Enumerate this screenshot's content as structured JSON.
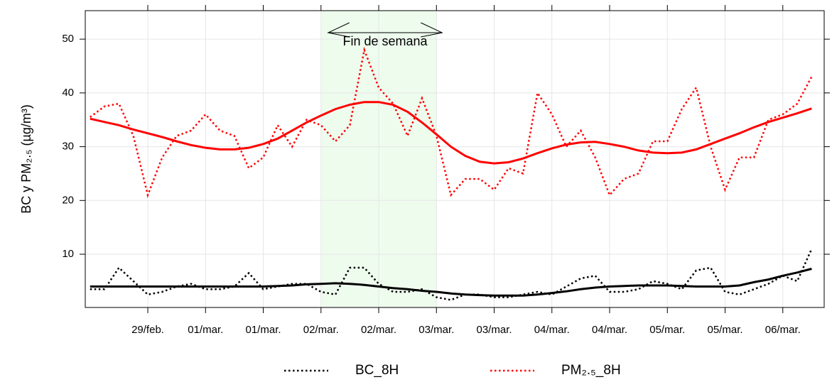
{
  "chart_data": {
    "type": "line",
    "y_label": "BC y PM₂.₅ (µg/m³)",
    "annotation": {
      "text": "Fin de semana",
      "range": [
        48,
        72
      ],
      "color": "#eefcee"
    },
    "xlim": [
      -1,
      152.6
    ],
    "ylim": [
      0.1,
      55.3
    ],
    "yticks": [
      10,
      20,
      30,
      40,
      50
    ],
    "xticks": [
      {
        "value": 12,
        "label": "29/feb."
      },
      {
        "value": 24,
        "label": "01/mar."
      },
      {
        "value": 36,
        "label": "01/mar."
      },
      {
        "value": 48,
        "label": "02/mar."
      },
      {
        "value": 60,
        "label": "02/mar."
      },
      {
        "value": 72,
        "label": "03/mar."
      },
      {
        "value": 84,
        "label": "03/mar."
      },
      {
        "value": 96,
        "label": "04/mar."
      },
      {
        "value": 108,
        "label": "04/mar."
      },
      {
        "value": 120,
        "label": "05/mar."
      },
      {
        "value": 132,
        "label": "05/mar."
      },
      {
        "value": 144,
        "label": "06/mar."
      }
    ],
    "grid": true,
    "x": [
      0,
      3,
      6,
      9,
      12,
      15,
      18,
      21,
      24,
      27,
      30,
      33,
      36,
      39,
      42,
      45,
      48,
      51,
      54,
      57,
      60,
      63,
      66,
      69,
      72,
      75,
      78,
      81,
      84,
      87,
      90,
      93,
      96,
      99,
      102,
      105,
      108,
      111,
      114,
      117,
      120,
      123,
      126,
      129,
      132,
      135,
      138,
      141,
      144,
      147,
      150
    ],
    "series": [
      {
        "name": "BC_8H",
        "color": "#000000",
        "dash": "dotted",
        "values": [
          3.5,
          3.5,
          7.5,
          5,
          2.5,
          3,
          4,
          4.5,
          3.5,
          3.5,
          4,
          6.5,
          3.5,
          4,
          4.5,
          4.5,
          3,
          2.5,
          7.5,
          7.5,
          4.5,
          3,
          3,
          3.5,
          2,
          1.5,
          2.5,
          2.5,
          2,
          2,
          2.5,
          3,
          2.5,
          4,
          5.5,
          6,
          3,
          3,
          3.5,
          5,
          4.5,
          3.5,
          7,
          7.5,
          3,
          2.5,
          3.5,
          4.5,
          6,
          5,
          11
        ]
      },
      {
        "name": "PM₂.₅_8H",
        "color": "#ff0000",
        "dash": "dotted",
        "values": [
          35.5,
          37.5,
          38,
          32,
          21,
          28,
          32,
          33,
          36,
          33,
          32,
          26,
          28,
          34,
          30,
          35,
          34,
          31,
          34,
          48,
          41,
          38,
          32,
          39,
          32,
          21,
          24,
          24,
          22,
          26,
          25,
          40,
          36,
          30,
          33,
          28,
          21,
          24,
          25,
          31,
          31,
          37,
          41,
          30,
          22,
          28,
          28,
          35,
          36,
          38,
          43
        ]
      },
      {
        "color": "#000000",
        "dash": "solid",
        "values": [
          4,
          4,
          4,
          4,
          4,
          4,
          4,
          4,
          4,
          4,
          4,
          4,
          4,
          4.1,
          4.2,
          4.4,
          4.5,
          4.6,
          4.5,
          4.3,
          4,
          3.7,
          3.5,
          3.2,
          3,
          2.7,
          2.5,
          2.4,
          2.3,
          2.3,
          2.3,
          2.5,
          2.8,
          3.1,
          3.5,
          3.8,
          4,
          4.1,
          4.2,
          4.2,
          4.2,
          4.1,
          4,
          4,
          4,
          4.2,
          4.8,
          5.3,
          6,
          6.6,
          7.3
        ]
      },
      {
        "color": "#ff0000",
        "dash": "solid",
        "values": [
          35.2,
          34.6,
          34,
          33.2,
          32.5,
          31.8,
          31,
          30.3,
          29.8,
          29.5,
          29.5,
          29.8,
          30.5,
          31.5,
          33,
          34.5,
          35.8,
          37,
          37.8,
          38.3,
          38.3,
          37.8,
          36.5,
          34.5,
          32.3,
          30,
          28.3,
          27.2,
          26.9,
          27.1,
          27.8,
          28.8,
          29.7,
          30.4,
          30.8,
          30.9,
          30.5,
          30,
          29.3,
          28.9,
          28.8,
          28.9,
          29.5,
          30.5,
          31.5,
          32.5,
          33.6,
          34.6,
          35.4,
          36.2,
          37.1
        ]
      }
    ]
  }
}
